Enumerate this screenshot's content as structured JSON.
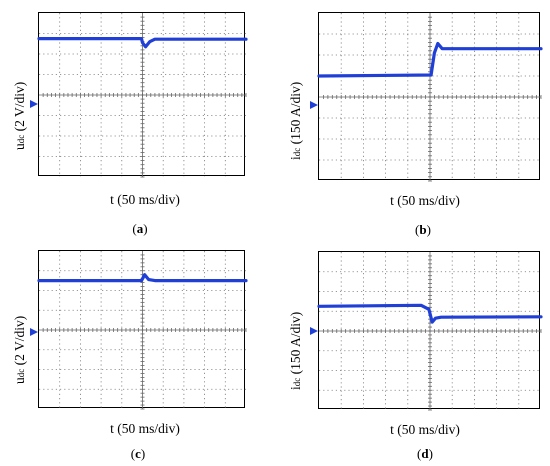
{
  "chart_data": [
    {
      "type": "line",
      "panel_label": "a",
      "ylabel_main": "u",
      "ylabel_sub": "dc",
      "ylabel_rest": " (2 V/div)",
      "xlabel": "t (50 ms/div)",
      "grid": true,
      "divisions": {
        "x": 10,
        "y": 8
      },
      "series": [
        {
          "color": "#1f3fd6",
          "x": [
            0,
            4.95,
            5.0,
            5.15,
            5.35,
            5.6,
            10
          ],
          "y": [
            2.75,
            2.75,
            2.55,
            2.35,
            2.6,
            2.72,
            2.72
          ]
        }
      ]
    },
    {
      "type": "line",
      "panel_label": "b",
      "ylabel_main": "i",
      "ylabel_sub": "dc",
      "ylabel_rest": " (150 A/div)",
      "xlabel": "t (50 ms/div)",
      "grid": true,
      "divisions": {
        "x": 10,
        "y": 8
      },
      "series": [
        {
          "color": "#1f3fd6",
          "x": [
            0,
            5.05,
            5.2,
            5.35,
            5.55,
            10
          ],
          "y": [
            1.0,
            1.05,
            2.1,
            2.55,
            2.3,
            2.3
          ]
        }
      ]
    },
    {
      "type": "line",
      "panel_label": "c",
      "ylabel_main": "u",
      "ylabel_sub": "dc",
      "ylabel_rest": " (2 V/div)",
      "xlabel": "t (50 ms/div)",
      "grid": true,
      "divisions": {
        "x": 10,
        "y": 8
      },
      "series": [
        {
          "color": "#1f3fd6",
          "x": [
            0,
            4.95,
            5.1,
            5.3,
            5.6,
            10
          ],
          "y": [
            2.5,
            2.5,
            2.8,
            2.55,
            2.5,
            2.5
          ]
        }
      ]
    },
    {
      "type": "line",
      "panel_label": "d",
      "ylabel_main": "i",
      "ylabel_sub": "dc",
      "ylabel_rest": " (150 A/div)",
      "xlabel": "t (50 ms/div)",
      "grid": true,
      "divisions": {
        "x": 10,
        "y": 8
      },
      "series": [
        {
          "color": "#1f3fd6",
          "x": [
            0,
            4.6,
            4.95,
            5.1,
            5.25,
            5.5,
            10
          ],
          "y": [
            1.25,
            1.3,
            1.1,
            0.45,
            0.65,
            0.7,
            0.72
          ]
        }
      ]
    }
  ]
}
